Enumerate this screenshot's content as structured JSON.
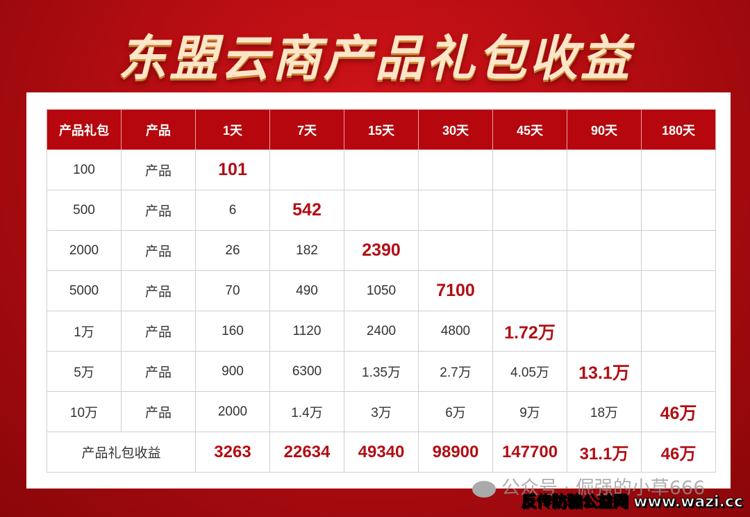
{
  "title": "东盟云商产品礼包收益",
  "table": {
    "headers": [
      "产品礼包",
      "产品",
      "1天",
      "7天",
      "15天",
      "30天",
      "45天",
      "90天",
      "180天"
    ],
    "rows": [
      {
        "cells": [
          "100",
          "产品",
          "101",
          "",
          "",
          "",
          "",
          "",
          ""
        ],
        "highlight": 2
      },
      {
        "cells": [
          "500",
          "产品",
          "6",
          "542",
          "",
          "",
          "",
          "",
          ""
        ],
        "highlight": 3
      },
      {
        "cells": [
          "2000",
          "产品",
          "26",
          "182",
          "2390",
          "",
          "",
          "",
          ""
        ],
        "highlight": 4
      },
      {
        "cells": [
          "5000",
          "产品",
          "70",
          "490",
          "1050",
          "7100",
          "",
          "",
          ""
        ],
        "highlight": 5
      },
      {
        "cells": [
          "1万",
          "产品",
          "160",
          "1120",
          "2400",
          "4800",
          "1.72万",
          "",
          ""
        ],
        "highlight": 6
      },
      {
        "cells": [
          "5万",
          "产品",
          "900",
          "6300",
          "1.35万",
          "2.7万",
          "4.05万",
          "13.1万",
          ""
        ],
        "highlight": 7
      },
      {
        "cells": [
          "10万",
          "产品",
          "2000",
          "1.4万",
          "3万",
          "6万",
          "9万",
          "18万",
          "46万"
        ],
        "highlight": 8
      }
    ],
    "summary": {
      "label": "产品礼包收益",
      "values": [
        "3263",
        "22634",
        "49340",
        "98900",
        "147700",
        "31.1万",
        "46万"
      ]
    }
  },
  "watermark": "公众号 · 倔强的小草666",
  "site_label": "反传防骗公益网 www.wazi.cc",
  "colors": {
    "header_bg": "#b5070d",
    "highlight": "#b10e14"
  }
}
